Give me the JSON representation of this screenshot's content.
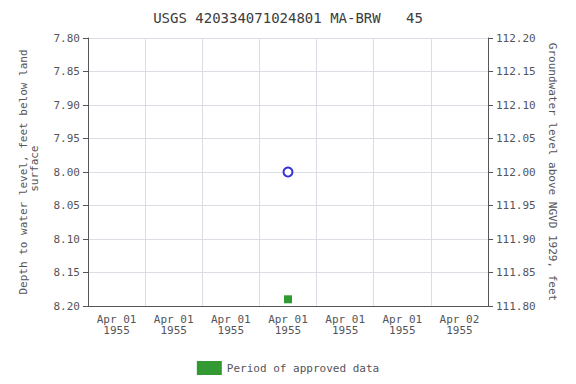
{
  "chart_data": {
    "type": "scatter",
    "title": "USGS 420334071024801 MA-BRW   45",
    "ylabel": "Depth to water level, feet below land\n surface",
    "y2label": "Groundwater level above NGVD 1929, feet",
    "categories": [
      "Apr 01\n1955",
      "Apr 01\n1955",
      "Apr 01\n1955",
      "Apr 01\n1955",
      "Apr 01\n1955",
      "Apr 01\n1955",
      "Apr 02\n1955"
    ],
    "series": [
      {
        "color": "#0000cc",
        "marker": "circle",
        "values": [
          null,
          null,
          null,
          8.0,
          null,
          null,
          null
        ]
      },
      {
        "name": "Period of approved data",
        "color": "#008000",
        "marker": "square",
        "values": [
          null,
          null,
          null,
          8.19,
          null,
          null,
          null
        ]
      }
    ],
    "ylim": [
      8.2,
      7.8
    ],
    "yticks": [
      {
        "value": 7.8,
        "label": "7.80"
      },
      7.85,
      {
        "value": 7.9,
        "label": "7.90"
      },
      7.95,
      {
        "value": 8.0,
        "label": "8.00"
      },
      8.05,
      {
        "value": 8.1,
        "label": "8.10"
      },
      8.15,
      {
        "value": 8.2,
        "label": "8.20"
      }
    ],
    "y2lim": [
      111.8,
      112.2
    ],
    "y2ticks": [
      {
        "value": 111.8,
        "label": "111.80"
      },
      111.85,
      {
        "value": 111.9,
        "label": "111.90"
      },
      111.95,
      {
        "value": 112.0,
        "label": "112.00"
      },
      112.05,
      {
        "value": 112.1,
        "label": "112.10"
      },
      112.15,
      {
        "value": 112.2,
        "label": "112.20"
      }
    ],
    "grid": true,
    "legend": "bottom"
  }
}
